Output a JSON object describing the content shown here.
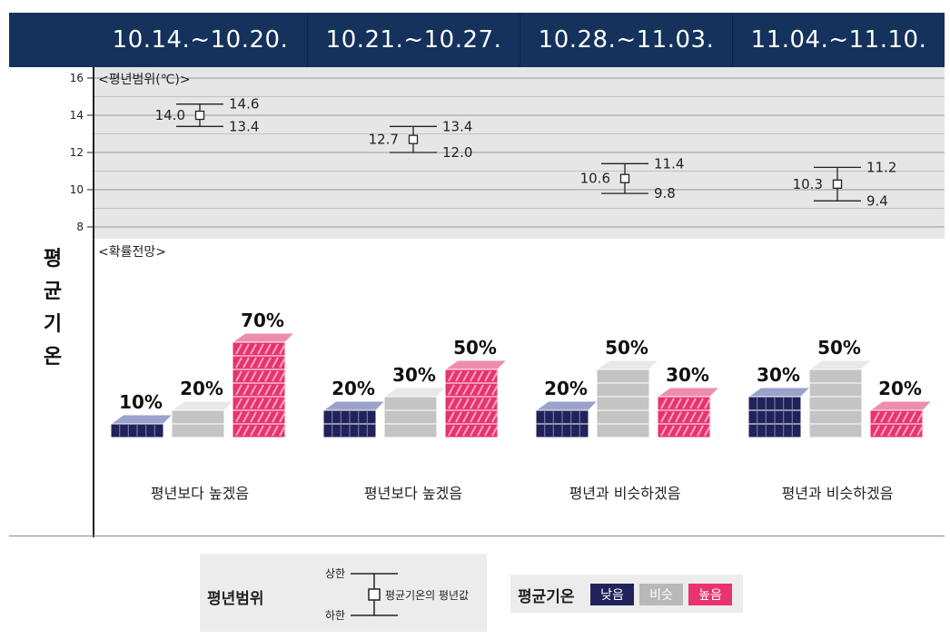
{
  "header": {
    "periods": [
      "10.14.~10.20.",
      "10.21.~10.27.",
      "10.28.~11.03.",
      "11.04.~11.10."
    ]
  },
  "side_title": [
    "평",
    "균",
    "기",
    "온"
  ],
  "chart_data": [
    {
      "type": "range",
      "title": "<평년범위(℃)>",
      "ylim": [
        8,
        16
      ],
      "y_ticks": [
        "16",
        "14",
        "12",
        "10",
        "8"
      ],
      "categories": [
        "10.14.~10.20.",
        "10.21.~10.27.",
        "10.28.~11.03.",
        "11.04.~11.10."
      ],
      "mean": [
        14.0,
        12.7,
        10.6,
        10.3
      ],
      "upper": [
        14.6,
        13.4,
        11.4,
        11.2
      ],
      "lower": [
        13.4,
        12.0,
        9.8,
        9.4
      ],
      "mean_labels": [
        "14.0",
        "12.7",
        "10.6",
        "10.3"
      ],
      "upper_labels": [
        "14.6",
        "13.4",
        "11.4",
        "11.2"
      ],
      "lower_labels": [
        "13.4",
        "12.0",
        "9.8",
        "9.4"
      ],
      "grid": true
    },
    {
      "type": "bar",
      "title": "<확률전망>",
      "categories": [
        "10.14.~10.20.",
        "10.21.~10.27.",
        "10.28.~11.03.",
        "11.04.~11.10."
      ],
      "series": [
        {
          "name": "낮음",
          "values": [
            10,
            20,
            20,
            30
          ],
          "color": "#22225a"
        },
        {
          "name": "비슷",
          "values": [
            20,
            30,
            50,
            50
          ],
          "color": "#b8b8b8"
        },
        {
          "name": "높음",
          "values": [
            70,
            50,
            30,
            20
          ],
          "color": "#e8336e"
        }
      ],
      "value_labels": [
        [
          "10%",
          "20%",
          "70%"
        ],
        [
          "20%",
          "30%",
          "50%"
        ],
        [
          "20%",
          "50%",
          "30%"
        ],
        [
          "30%",
          "50%",
          "20%"
        ]
      ],
      "outlook": [
        "평년보다 높겠음",
        "평년보다 높겠음",
        "평년과 비슷하겠음",
        "평년과 비슷하겠음"
      ]
    }
  ],
  "legend_range": {
    "title": "평년범위",
    "upper_label": "상한",
    "lower_label": "하한",
    "mean_label": "평균기온의 평년값"
  },
  "legend_prob": {
    "title": "평균기온",
    "items": [
      {
        "label": "낮음",
        "color": "#22225a"
      },
      {
        "label": "비슷",
        "color": "#b8b8b8"
      },
      {
        "label": "높음",
        "color": "#e8336e"
      }
    ]
  }
}
